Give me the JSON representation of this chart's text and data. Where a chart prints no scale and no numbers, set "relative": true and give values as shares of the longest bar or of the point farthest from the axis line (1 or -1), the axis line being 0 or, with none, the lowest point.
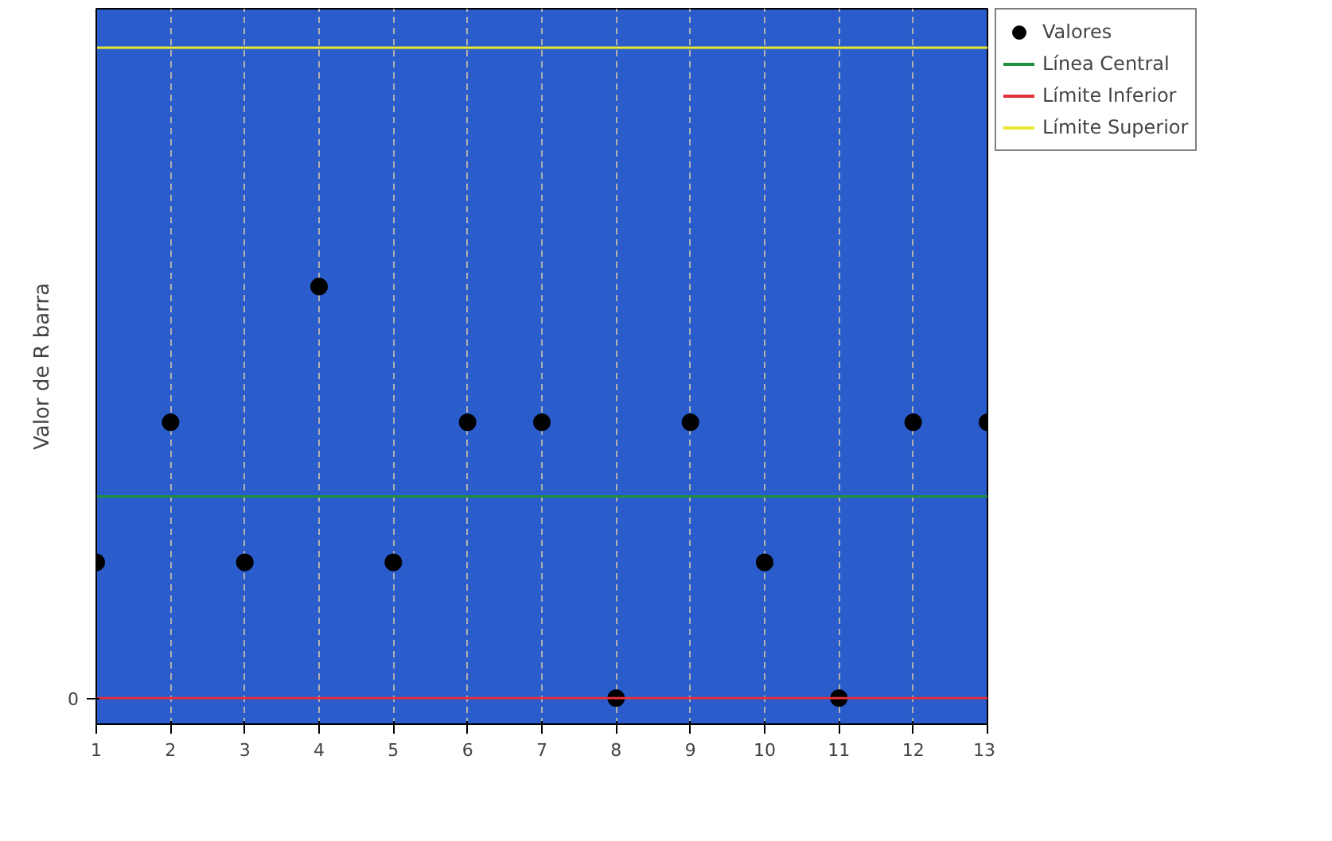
{
  "chart_data": {
    "type": "scatter",
    "relative": true,
    "ylabel": "Valor de R barra",
    "x": [
      1,
      2,
      3,
      4,
      5,
      6,
      7,
      8,
      9,
      10,
      11,
      12,
      13
    ],
    "series": [
      {
        "name": "Valores",
        "color": "#000000",
        "values": [
          0.33,
          0.67,
          0.33,
          1,
          0.33,
          0.67,
          0.67,
          0,
          0.67,
          0.33,
          0,
          0.67,
          0.67
        ]
      }
    ],
    "ref_lines": [
      {
        "axis": "y",
        "value": 0.49,
        "label": "Línea Central",
        "color": "#1f8f3f",
        "line_style": "solid"
      },
      {
        "axis": "y",
        "value": 0,
        "label": "Límite Inferior",
        "color": "#e0303a",
        "line_style": "solid"
      },
      {
        "axis": "y",
        "value": 1.58,
        "label": "Límite Superior",
        "color": "#e8e830",
        "line_style": "solid"
      }
    ],
    "annotations": [
      "0"
    ],
    "xlim": [
      1,
      13
    ],
    "xticks": [
      1,
      2,
      3,
      4,
      5,
      6,
      7,
      8,
      9,
      10,
      11,
      12,
      13
    ],
    "grid": "x",
    "legend": "top right",
    "marker": "circle"
  }
}
